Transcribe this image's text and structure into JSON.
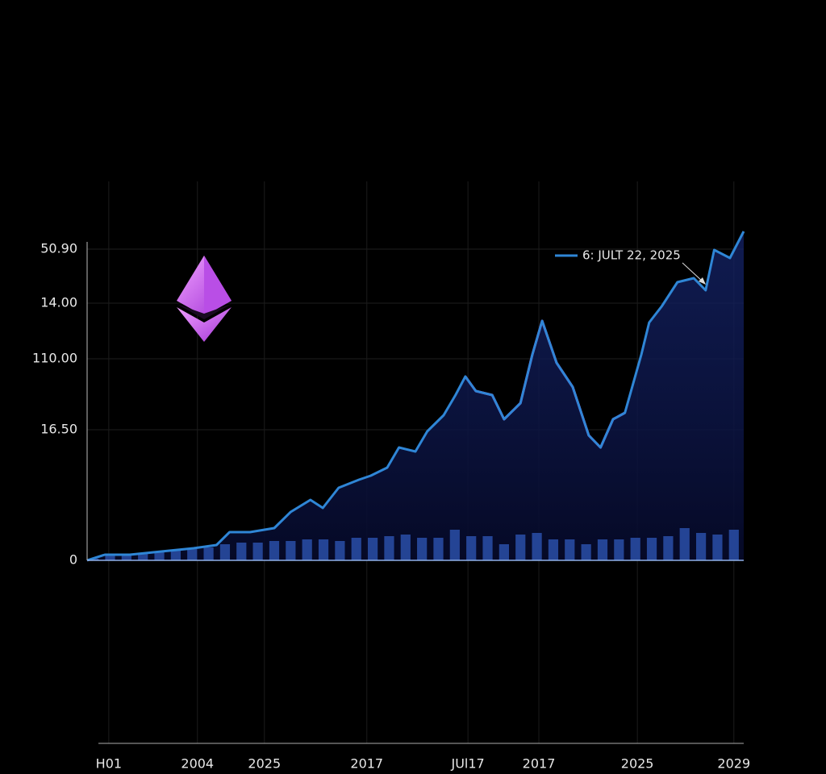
{
  "chart_data": {
    "type": "line",
    "xlim": [
      0,
      100
    ],
    "ylim": [
      0,
      105
    ],
    "xticks": [
      {
        "value": 3.3,
        "label": "H01"
      },
      {
        "value": 16.8,
        "label": "2004"
      },
      {
        "value": 27.0,
        "label": "2025"
      },
      {
        "value": 42.6,
        "label": "2017"
      },
      {
        "value": 58.0,
        "label": "JUl17"
      },
      {
        "value": 68.8,
        "label": "2017"
      },
      {
        "value": 83.8,
        "label": "2025"
      },
      {
        "value": 98.5,
        "label": "2029"
      }
    ],
    "yticks": [
      0,
      {
        "value": 40.5,
        "label": "16.50"
      },
      {
        "value": 62.5,
        "label": "110.00"
      },
      {
        "value": 79.75,
        "label": "14.00"
      },
      {
        "value": 96.5,
        "label": "50.90"
      }
    ],
    "grid": true,
    "series": [
      {
        "name": "6: JULT 22, 2025",
        "color": "#2f86d6",
        "x": [
          0,
          2.7,
          6.5,
          11.3,
          16.2,
          19.7,
          21.7,
          24.8,
          28.5,
          31,
          34,
          35.9,
          38.3,
          41.4,
          43.2,
          45.7,
          47.5,
          50,
          51.8,
          54.3,
          56.1,
          57.6,
          59.2,
          61.7,
          63.5,
          66,
          67.8,
          69.3,
          71.5,
          73.96,
          76.4,
          78.2,
          80.1,
          81.9,
          84.4,
          85.6,
          87.5,
          89.9,
          92.4,
          94.2,
          95.5,
          97.9,
          100
        ],
        "values": [
          0,
          1.75,
          1.75,
          2.75,
          3.75,
          4.75,
          8.75,
          8.75,
          10,
          15,
          18.75,
          16.25,
          22.5,
          25,
          26.25,
          28.75,
          35,
          33.75,
          40,
          45,
          51.25,
          57,
          52.5,
          51.25,
          43.75,
          48.75,
          63.75,
          74.25,
          61.25,
          53.75,
          38.75,
          35,
          43.75,
          45.75,
          63.75,
          73.75,
          78.75,
          86.25,
          87.5,
          83.75,
          96.25,
          93.75,
          102
        ]
      },
      {
        "color": "#e03ad8",
        "x": [
          0,
          2.7,
          6.5,
          11.3,
          16.2,
          19.7,
          21.7,
          24.8,
          28.5,
          31,
          34,
          35.9,
          38.3,
          41.4,
          43.2,
          45.7,
          47.5,
          50,
          51.8,
          54.3,
          56.1,
          57.6,
          59.2,
          61.7,
          63.5,
          66,
          67.8,
          69.3,
          71.5,
          73.96,
          76.4,
          78.2,
          80.1,
          81.9,
          84.4,
          85.6,
          87.5,
          89.9,
          92.4,
          94.2,
          95.5,
          97.9,
          100
        ],
        "values": [
          null,
          null,
          null,
          null,
          null,
          null,
          null,
          null,
          null,
          null,
          null,
          null,
          null,
          null,
          null,
          null,
          null,
          null,
          null,
          null,
          null,
          57,
          52.5,
          51.25,
          43.75,
          48.75,
          63.75,
          74.25,
          61.25,
          53.75,
          38.75,
          35,
          43.75,
          45.75,
          null,
          null,
          null,
          null,
          null,
          null,
          null,
          null,
          null
        ]
      },
      {
        "type": "bar",
        "color": "#2a4fa8",
        "x": [
          1,
          3.5,
          6,
          8.5,
          11,
          13.5,
          16,
          18.5,
          21,
          23.5,
          26,
          28.5,
          31,
          33.5,
          36,
          38.5,
          41,
          43.5,
          46,
          48.5,
          51,
          53.5,
          56,
          58.5,
          61,
          63.5,
          66,
          68.5,
          71,
          73.5,
          76,
          78.5,
          81,
          83.5,
          86,
          88.5,
          91,
          93.5,
          96,
          98.5
        ],
        "values": [
          0.5,
          1.5,
          2,
          2,
          2.5,
          3,
          3.5,
          4,
          5,
          5.5,
          5.5,
          6,
          6,
          6.5,
          6.5,
          6,
          7,
          7,
          7.5,
          8,
          7,
          7,
          9.5,
          7.5,
          7.5,
          5,
          8,
          8.5,
          6.5,
          6.5,
          5,
          6.5,
          6.5,
          7,
          7,
          7.5,
          10,
          8.5,
          8,
          9.5
        ]
      }
    ]
  }
}
